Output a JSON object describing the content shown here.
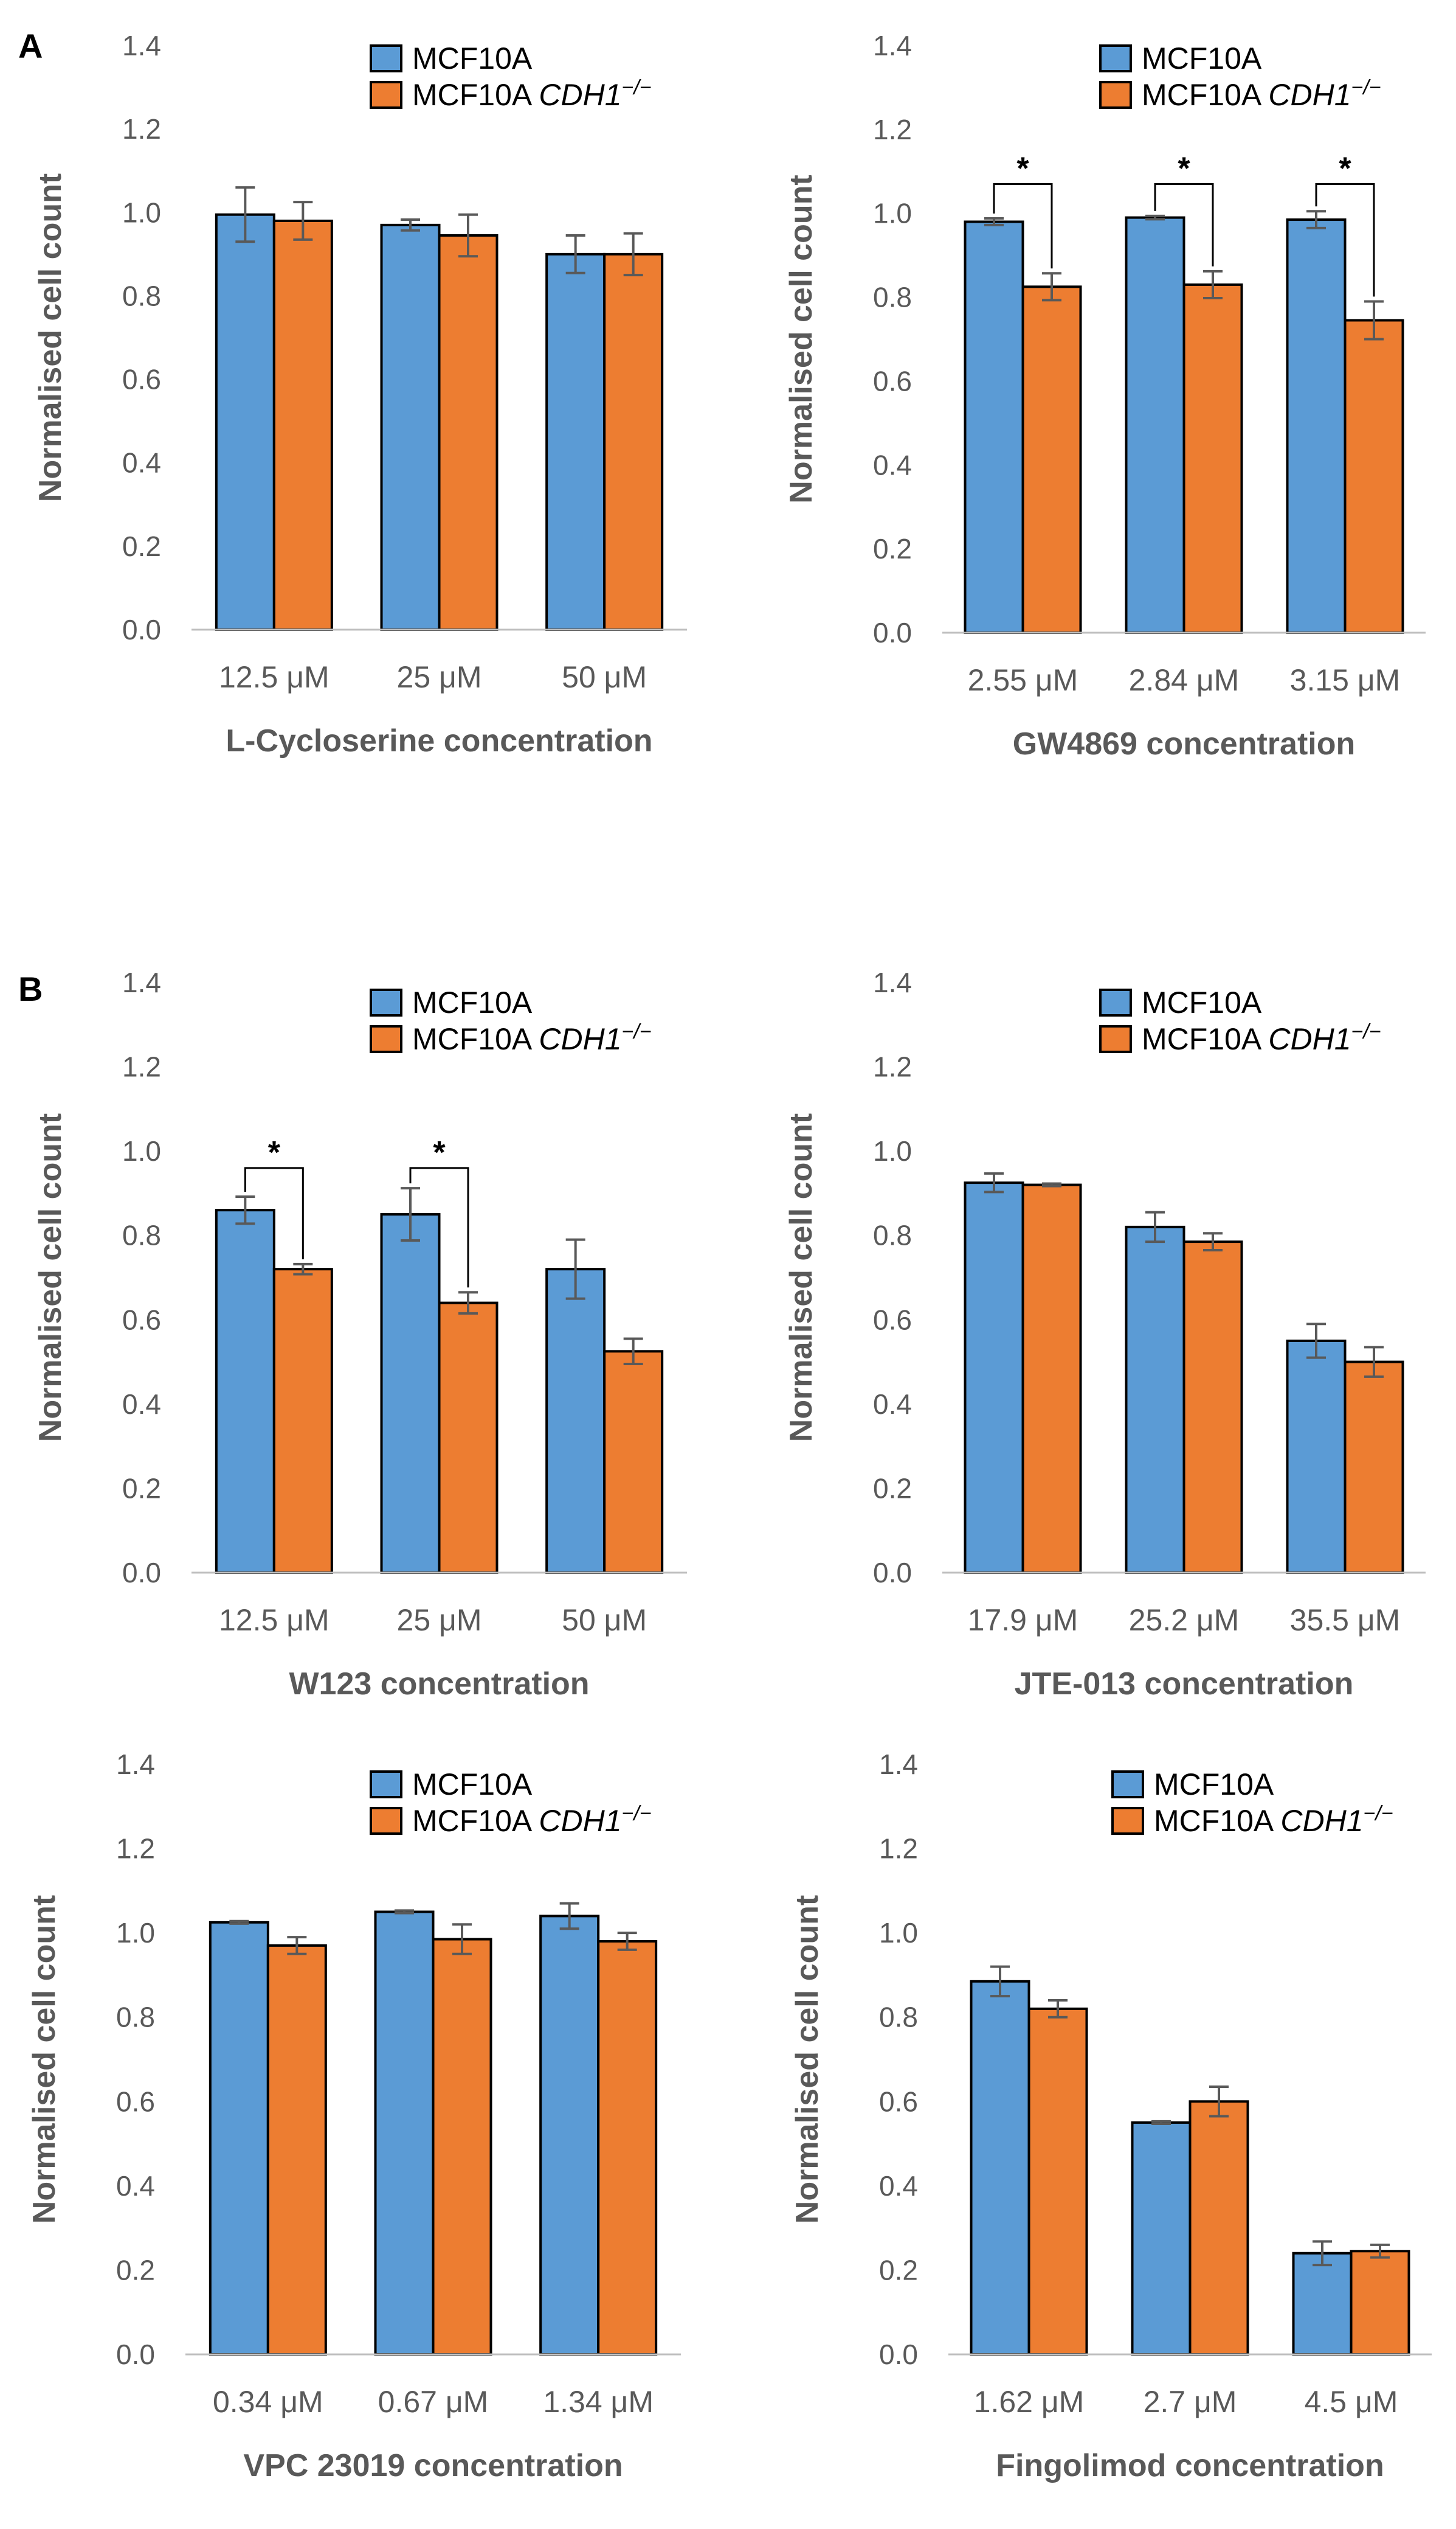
{
  "panel_labels": [
    "A",
    "B"
  ],
  "colors": {
    "series1": "#5B9BD5",
    "series2": "#ED7D31",
    "axis": "#BFBFBF",
    "error": "#595959"
  },
  "chart_data": [
    {
      "type": "bar",
      "panel": "A",
      "categories": [
        "12.5 μM",
        "25 μM",
        "50 μM"
      ],
      "series": [
        {
          "name": "MCF10A",
          "values": [
            0.995,
            0.97,
            0.9
          ],
          "errors": [
            0.065,
            0.013,
            0.045
          ]
        },
        {
          "name": "MCF10A CDH1",
          "name_sup": "−/−",
          "values": [
            0.98,
            0.945,
            0.9
          ],
          "errors": [
            0.045,
            0.05,
            0.05
          ]
        }
      ],
      "xlabel": "L-Cycloserine concentration",
      "ylabel": "Normalised cell count",
      "ylim": [
        0,
        1.4
      ],
      "yticks": [
        "0.0",
        "0.2",
        "0.4",
        "0.6",
        "0.8",
        "1.0",
        "1.2",
        "1.4"
      ],
      "significance": []
    },
    {
      "type": "bar",
      "panel": "",
      "categories": [
        "2.55 μM",
        "2.84 μM",
        "3.15 μM"
      ],
      "series": [
        {
          "name": "MCF10A",
          "values": [
            0.98,
            0.99,
            0.985
          ],
          "errors": [
            0.008,
            0.004,
            0.02
          ]
        },
        {
          "name": "MCF10A CDH1",
          "name_sup": "−/−",
          "values": [
            0.825,
            0.83,
            0.745
          ],
          "errors": [
            0.032,
            0.032,
            0.045
          ]
        }
      ],
      "xlabel": "GW4869 concentration",
      "ylabel": "Normalised cell count",
      "ylim": [
        0,
        1.4
      ],
      "yticks": [
        "0.0",
        "0.2",
        "0.4",
        "0.6",
        "0.8",
        "1.0",
        "1.2",
        "1.4"
      ],
      "significance": [
        {
          "category": 0,
          "label": "*",
          "y": 1.07
        },
        {
          "category": 1,
          "label": "*",
          "y": 1.07
        },
        {
          "category": 2,
          "label": "*",
          "y": 1.07
        }
      ]
    },
    {
      "type": "bar",
      "panel": "B",
      "categories": [
        "12.5 μM",
        "25 μM",
        "50 μM"
      ],
      "series": [
        {
          "name": "MCF10A",
          "values": [
            0.86,
            0.85,
            0.72
          ],
          "errors": [
            0.032,
            0.062,
            0.07
          ]
        },
        {
          "name": "MCF10A CDH1",
          "name_sup": "−/−",
          "values": [
            0.72,
            0.64,
            0.525
          ],
          "errors": [
            0.012,
            0.025,
            0.03
          ]
        }
      ],
      "xlabel": "W123 concentration",
      "ylabel": "Normalised cell count",
      "ylim": [
        0,
        1.4
      ],
      "yticks": [
        "0.0",
        "0.2",
        "0.4",
        "0.6",
        "0.8",
        "1.0",
        "1.2",
        "1.4"
      ],
      "significance": [
        {
          "category": 0,
          "label": "*",
          "y": 0.96
        },
        {
          "category": 1,
          "label": "*",
          "y": 0.96
        }
      ]
    },
    {
      "type": "bar",
      "panel": "",
      "categories": [
        "17.9 μM",
        "25.2 μM",
        "35.5 μM"
      ],
      "series": [
        {
          "name": "MCF10A",
          "values": [
            0.925,
            0.82,
            0.55
          ],
          "errors": [
            0.022,
            0.035,
            0.04
          ]
        },
        {
          "name": "MCF10A CDH1",
          "name_sup": "−/−",
          "values": [
            0.92,
            0.785,
            0.5
          ],
          "errors": [
            0.003,
            0.02,
            0.035
          ]
        }
      ],
      "xlabel": "JTE-013 concentration",
      "ylabel": "Normalised cell count",
      "ylim": [
        0,
        1.4
      ],
      "yticks": [
        "0.0",
        "0.2",
        "0.4",
        "0.6",
        "0.8",
        "1.0",
        "1.2",
        "1.4"
      ],
      "significance": []
    },
    {
      "type": "bar",
      "panel": "",
      "categories": [
        "0.34 μM",
        "0.67 μM",
        "1.34 μM"
      ],
      "series": [
        {
          "name": "MCF10A",
          "values": [
            1.025,
            1.05,
            1.04
          ],
          "errors": [
            0.003,
            0.003,
            0.03
          ]
        },
        {
          "name": "MCF10A CDH1",
          "name_sup": "−/−",
          "values": [
            0.97,
            0.985,
            0.98
          ],
          "errors": [
            0.02,
            0.035,
            0.02
          ]
        }
      ],
      "xlabel": "VPC 23019 concentration",
      "ylabel": "Normalised cell count",
      "ylim": [
        0,
        1.4
      ],
      "yticks": [
        "0.0",
        "0.2",
        "0.4",
        "0.6",
        "0.8",
        "1.0",
        "1.2",
        "1.4"
      ],
      "significance": []
    },
    {
      "type": "bar",
      "panel": "",
      "categories": [
        "1.62 μM",
        "2.7 μM",
        "4.5 μM"
      ],
      "series": [
        {
          "name": "MCF10A",
          "values": [
            0.885,
            0.55,
            0.24
          ],
          "errors": [
            0.035,
            0.003,
            0.028
          ]
        },
        {
          "name": "MCF10A CDH1",
          "name_sup": "−/−",
          "values": [
            0.82,
            0.6,
            0.245
          ],
          "errors": [
            0.02,
            0.035,
            0.015
          ]
        }
      ],
      "xlabel": "Fingolimod concentration",
      "ylabel": "Normalised cell count",
      "ylim": [
        0,
        1.4
      ],
      "yticks": [
        "0.0",
        "0.2",
        "0.4",
        "0.6",
        "0.8",
        "1.0",
        "1.2",
        "1.4"
      ],
      "significance": []
    }
  ]
}
